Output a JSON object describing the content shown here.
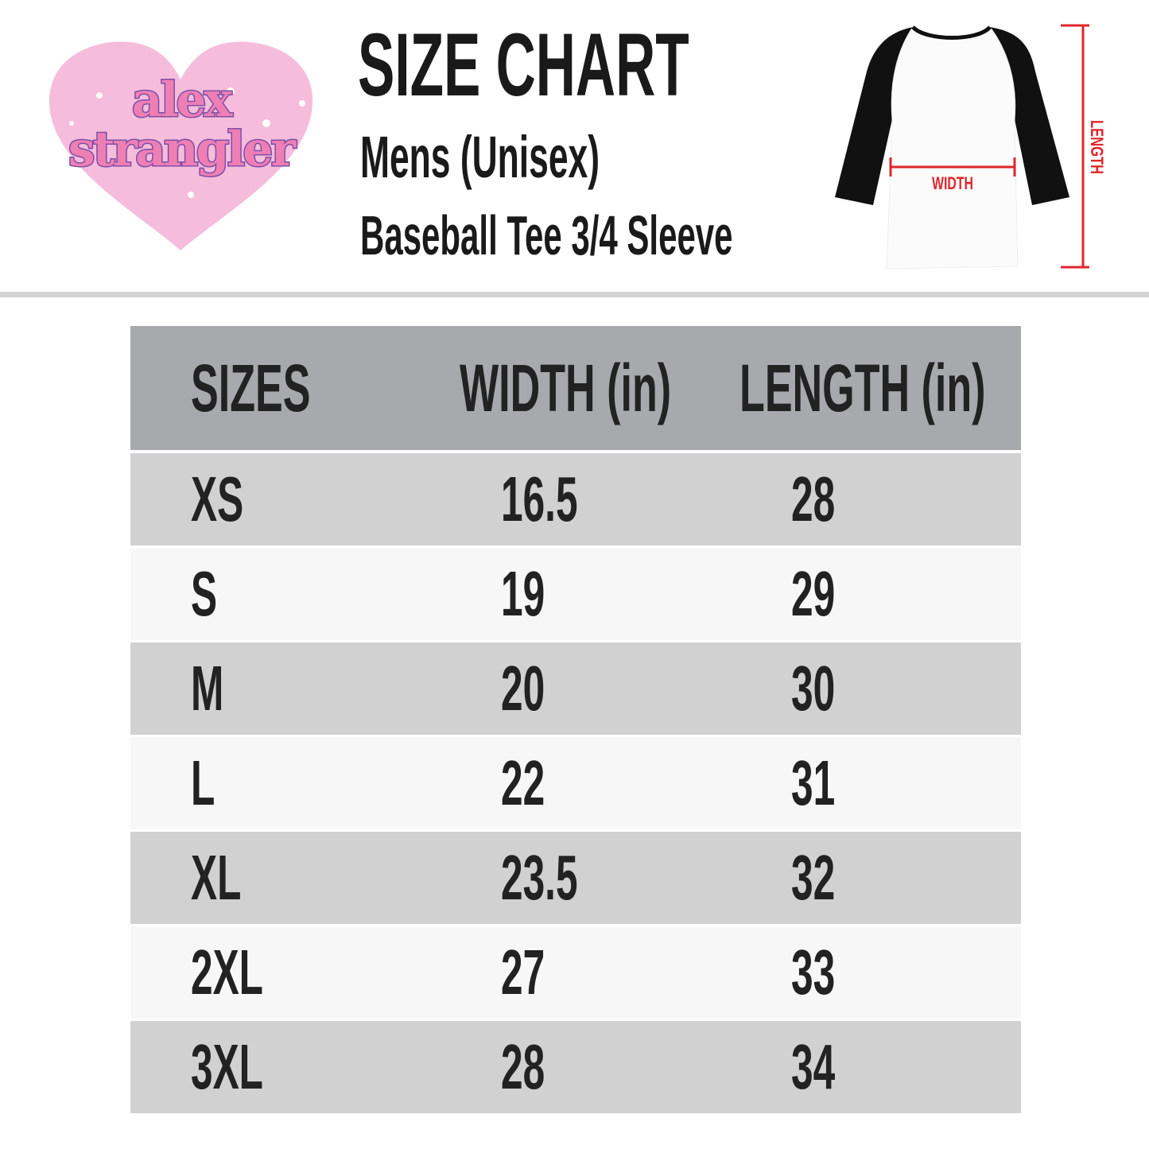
{
  "logo": {
    "text": "alex strangler",
    "heart_color": "#f6bcdb",
    "text_color": "#ee7fb5",
    "outline_color": "#7d4fa6"
  },
  "header": {
    "title": "SIZE CHART",
    "subtitle": "Mens (Unisex)",
    "product": "Baseball Tee 3/4 Sleeve"
  },
  "diagram": {
    "width_label": "WIDTH",
    "length_label": "LENGTH",
    "accent": "#e0262b"
  },
  "table": {
    "columns": [
      "SIZES",
      "WIDTH (in)",
      "LENGTH (in)"
    ],
    "rows": [
      {
        "size": "XS",
        "width": "16.5",
        "length": "28"
      },
      {
        "size": "S",
        "width": "19",
        "length": "29"
      },
      {
        "size": "M",
        "width": "20",
        "length": "30"
      },
      {
        "size": "L",
        "width": "22",
        "length": "31"
      },
      {
        "size": "XL",
        "width": "23.5",
        "length": "32"
      },
      {
        "size": "2XL",
        "width": "27",
        "length": "33"
      },
      {
        "size": "3XL",
        "width": "28",
        "length": "34"
      }
    ]
  }
}
